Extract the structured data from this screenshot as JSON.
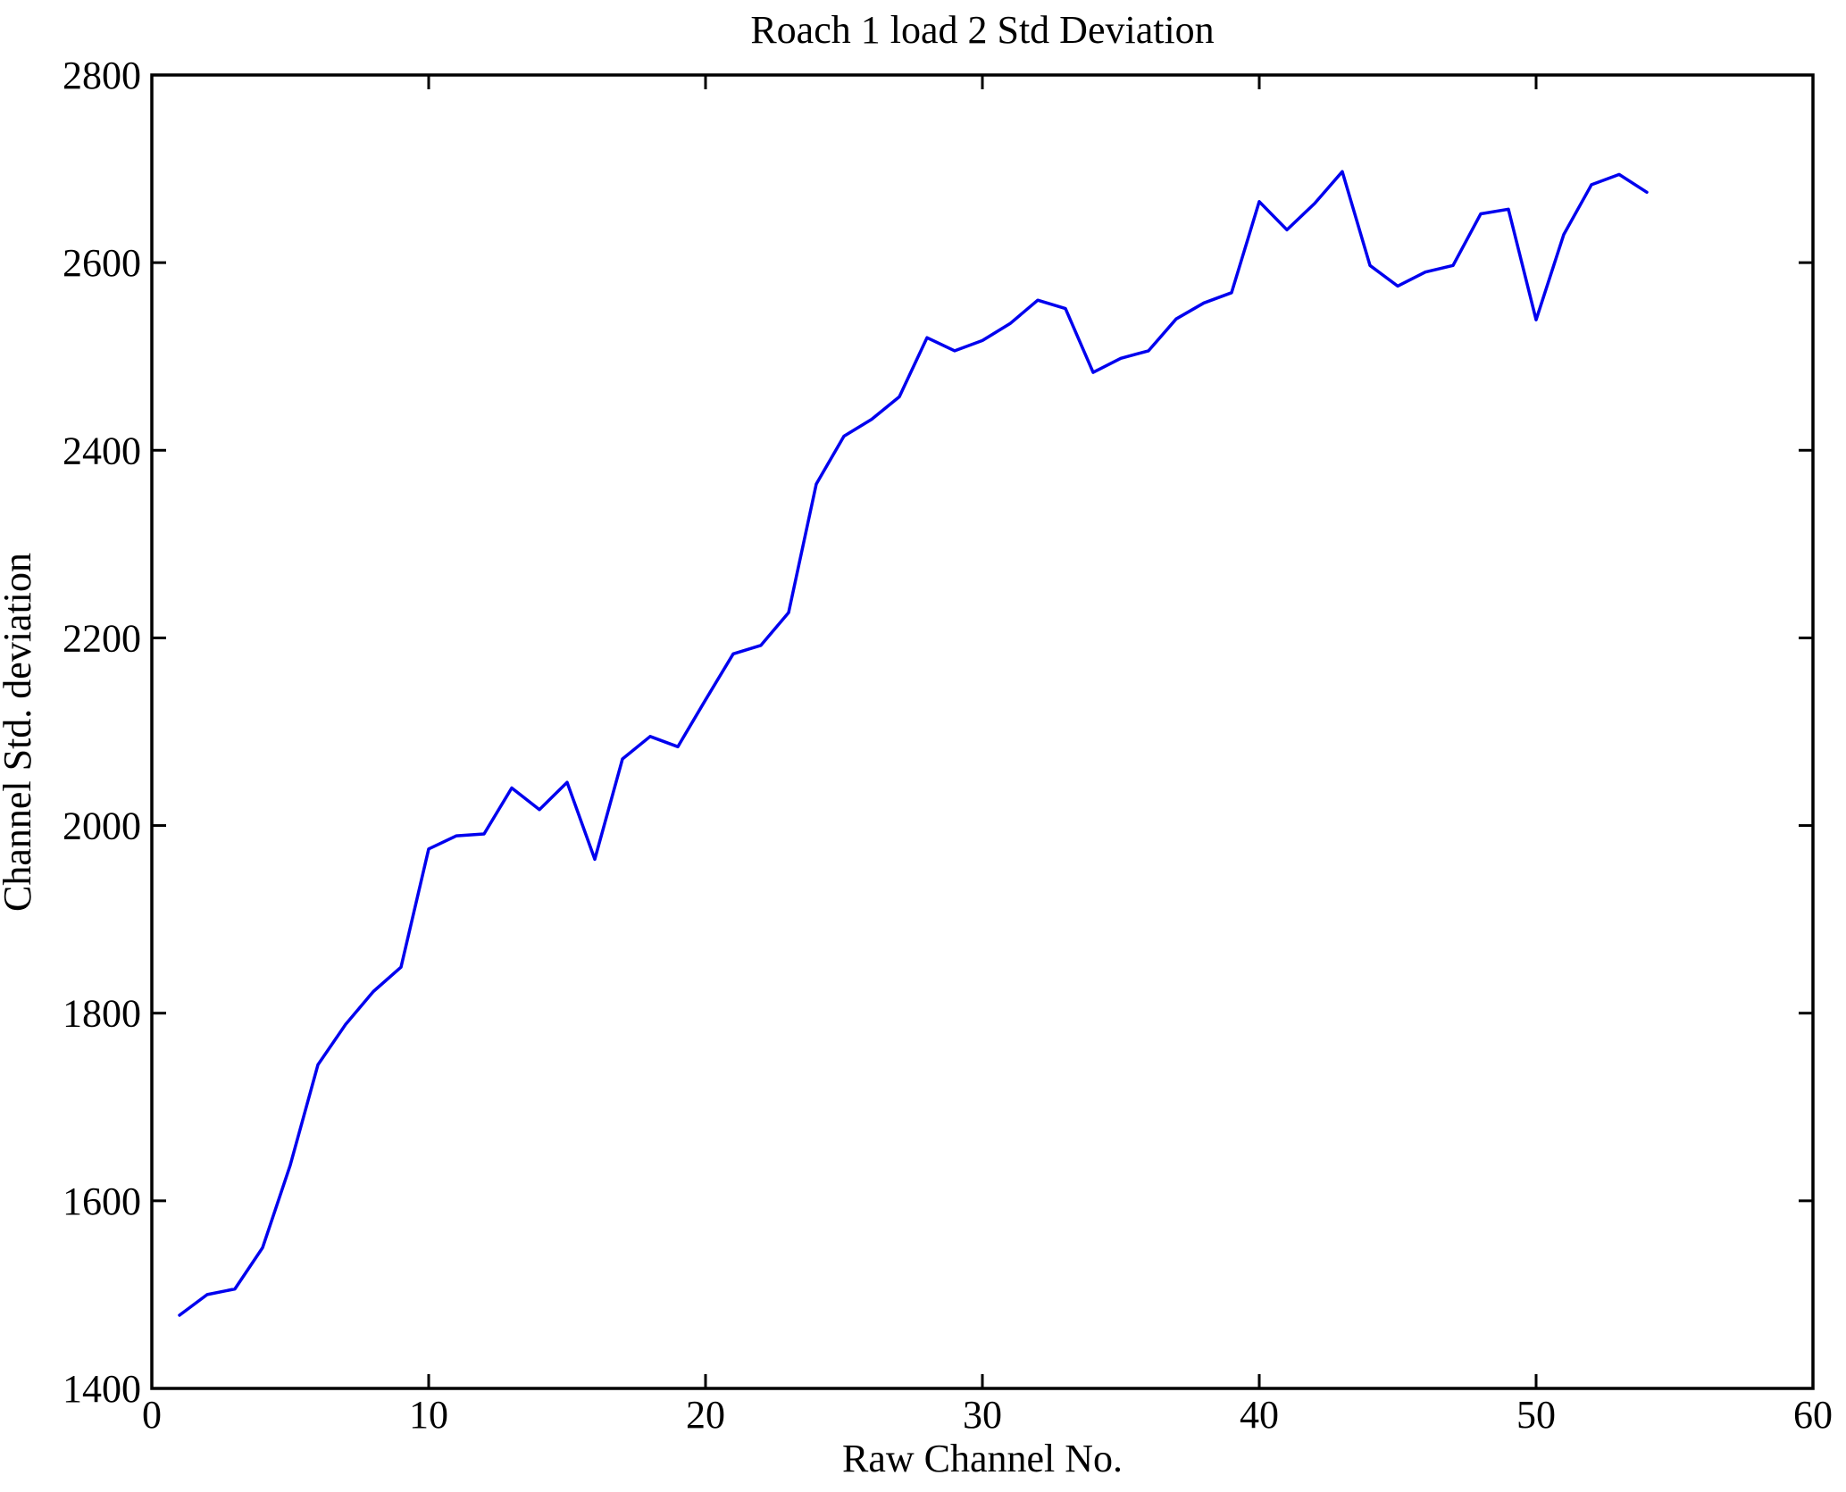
{
  "figure": {
    "title": "Roach 1 load 2 Std Deviation",
    "xlabel": "Raw Channel No.",
    "ylabel": "Channel Std. deviation",
    "background_color": "#ffffff",
    "axis_color": "#000000",
    "line_color": "#0000ee"
  },
  "chart_data": {
    "type": "line",
    "title": "Roach 1 load 2 Std Deviation",
    "xlabel": "Raw Channel No.",
    "ylabel": "Channel Std. deviation",
    "xlim": [
      0,
      60
    ],
    "ylim": [
      1400,
      2800
    ],
    "x_ticks": [
      0,
      10,
      20,
      30,
      40,
      50,
      60
    ],
    "y_ticks": [
      1400,
      1600,
      1800,
      2000,
      2200,
      2400,
      2600,
      2800
    ],
    "grid": false,
    "legend": "none",
    "series": [
      {
        "name": "Channel Std. deviation",
        "color": "#0000ee",
        "x": [
          1,
          2,
          3,
          4,
          5,
          6,
          7,
          8,
          9,
          10,
          11,
          12,
          13,
          14,
          15,
          16,
          17,
          18,
          19,
          20,
          21,
          22,
          23,
          24,
          25,
          26,
          27,
          28,
          29,
          30,
          31,
          32,
          33,
          34,
          35,
          36,
          37,
          38,
          39,
          40,
          41,
          42,
          43,
          44,
          45,
          46,
          47,
          48,
          49,
          50,
          51,
          52,
          53,
          54
        ],
        "values": [
          1478,
          1500,
          1506,
          1550,
          1638,
          1745,
          1788,
          1823,
          1849,
          1975,
          1989,
          1991,
          2040,
          2017,
          2046,
          1964,
          2071,
          2095,
          2084,
          2134,
          2183,
          2192,
          2227,
          2364,
          2415,
          2433,
          2457,
          2520,
          2506,
          2517,
          2535,
          2560,
          2551,
          2483,
          2498,
          2506,
          2540,
          2557,
          2568,
          2665,
          2635,
          2663,
          2697,
          2597,
          2575,
          2590,
          2597,
          2652,
          2657,
          2539,
          2630,
          2683,
          2694,
          2675
        ]
      }
    ]
  }
}
